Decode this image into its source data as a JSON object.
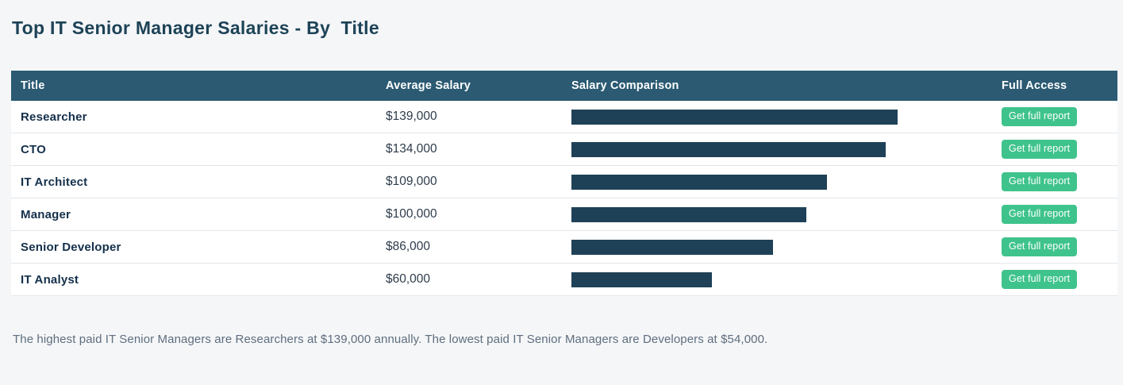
{
  "page": {
    "title": "Top IT Senior Manager Salaries - By  Title",
    "summary": "The highest paid IT Senior Managers are Researchers at $139,000 annually. The lowest paid IT Senior Managers are Developers at $54,000."
  },
  "table": {
    "headers": {
      "title": "Title",
      "salary": "Average Salary",
      "comparison": "Salary Comparison",
      "access": "Full Access"
    },
    "button_label": "Get full report",
    "rows": [
      {
        "title": "Researcher",
        "salary": "$139,000"
      },
      {
        "title": "CTO",
        "salary": "$134,000"
      },
      {
        "title": "IT Architect",
        "salary": "$109,000"
      },
      {
        "title": "Manager",
        "salary": "$100,000"
      },
      {
        "title": "Senior Developer",
        "salary": "$86,000"
      },
      {
        "title": "IT Analyst",
        "salary": "$60,000"
      }
    ]
  },
  "colors": {
    "header_bg": "#2b5a72",
    "bar": "#1f4157",
    "button": "#3fc38c",
    "title_text": "#1d4357",
    "page_bg": "#f5f6f8"
  },
  "chart_data": {
    "type": "bar",
    "categories": [
      "Researcher",
      "CTO",
      "IT Architect",
      "Manager",
      "Senior Developer",
      "IT Analyst"
    ],
    "values": [
      139000,
      134000,
      109000,
      100000,
      86000,
      60000
    ],
    "title": "Salary Comparison",
    "xlabel": "",
    "ylabel": "",
    "xlim": [
      0,
      139000
    ],
    "grid": false,
    "legend": false,
    "orientation": "horizontal"
  }
}
